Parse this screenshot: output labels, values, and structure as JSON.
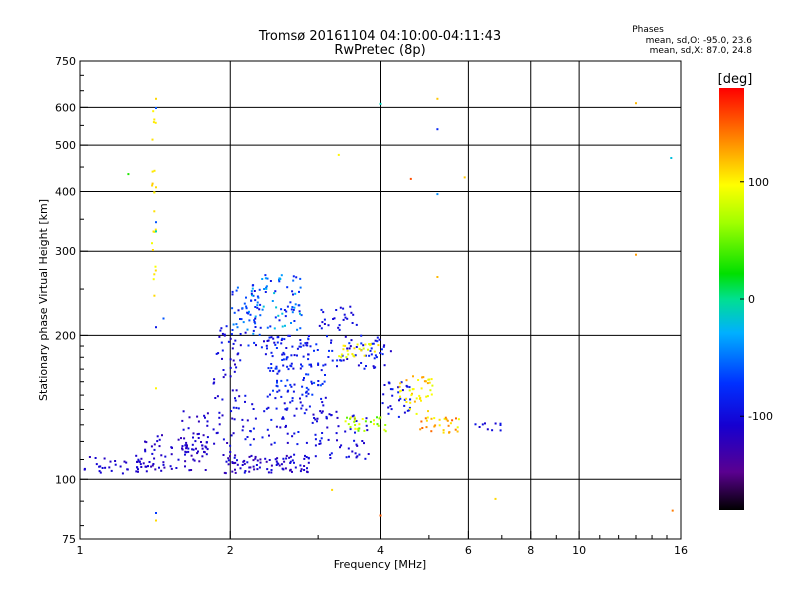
{
  "chart_data": {
    "type": "scatter",
    "title": "Tromsø 20161104 04:10:00-04:11:43",
    "subtitle": "RwPretec (8p)",
    "xlabel": "Frequency [MHz]",
    "ylabel": "Stationary phase Virtual Height [km]",
    "x_scale": "log",
    "y_scale": "log",
    "xlim": [
      1,
      16
    ],
    "ylim": [
      75,
      750
    ],
    "grid": true,
    "x_ticks": [
      {
        "value": 1,
        "label": "1"
      },
      {
        "value": 2,
        "label": "2"
      },
      {
        "value": 4,
        "label": "4"
      },
      {
        "value": 6,
        "label": "6"
      },
      {
        "value": 8,
        "label": "8"
      },
      {
        "value": 10,
        "label": "10"
      },
      {
        "value": 16,
        "label": "16"
      }
    ],
    "x_minor_ticks": [
      3,
      5,
      7,
      9,
      11,
      12,
      13,
      14,
      15
    ],
    "y_ticks": [
      {
        "value": 75,
        "label": "75"
      },
      {
        "value": 100,
        "label": "100"
      },
      {
        "value": 200,
        "label": "200"
      },
      {
        "value": 300,
        "label": "300"
      },
      {
        "value": 400,
        "label": "400"
      },
      {
        "value": 500,
        "label": "500"
      },
      {
        "value": 600,
        "label": "600"
      },
      {
        "value": 750,
        "label": "750"
      }
    ],
    "y_minor_ticks": [
      80,
      90,
      110,
      120,
      130,
      140,
      150,
      160,
      170,
      180,
      190,
      250,
      350,
      450,
      550,
      650,
      700
    ],
    "phases_box": {
      "title": "Phases",
      "line1": "mean, sd,O: -95.0, 23.6",
      "line2": "mean, sd,X:  87.0, 24.8"
    },
    "colorbar": {
      "label": "[deg]",
      "range": [
        -180,
        180
      ],
      "ticks": [
        {
          "value": 100,
          "label": "100"
        },
        {
          "value": 0,
          "label": "0"
        },
        {
          "value": -100,
          "label": "-100"
        }
      ]
    },
    "clusters": [
      {
        "x": [
          1.02,
          1.38
        ],
        "y": [
          102,
          112
        ],
        "phase": [
          -120,
          -100
        ],
        "n": 40
      },
      {
        "x": [
          1.3,
          1.8
        ],
        "y": [
          104,
          124
        ],
        "phase": [
          -130,
          -100
        ],
        "n": 70
      },
      {
        "x": [
          1.6,
          2.05
        ],
        "y": [
          112,
          140
        ],
        "phase": [
          -125,
          -95
        ],
        "n": 50
      },
      {
        "x": [
          1.85,
          2.1
        ],
        "y": [
          140,
          210
        ],
        "phase": [
          -120,
          -85
        ],
        "n": 45
      },
      {
        "x": [
          1.95,
          2.95
        ],
        "y": [
          103,
          113
        ],
        "phase": [
          -130,
          -95
        ],
        "n": 90
      },
      {
        "x": [
          2.0,
          2.3
        ],
        "y": [
          190,
          252
        ],
        "phase": [
          -110,
          -35
        ],
        "n": 45
      },
      {
        "x": [
          2.2,
          2.8
        ],
        "y": [
          205,
          270
        ],
        "phase": [
          -95,
          -15
        ],
        "n": 80
      },
      {
        "x": [
          2.3,
          3.0
        ],
        "y": [
          170,
          200
        ],
        "phase": [
          -110,
          -70
        ],
        "n": 70
      },
      {
        "x": [
          2.4,
          3.1
        ],
        "y": [
          150,
          175
        ],
        "phase": [
          -100,
          -60
        ],
        "n": 55
      },
      {
        "x": [
          2.1,
          3.2
        ],
        "y": [
          118,
          150
        ],
        "phase": [
          -115,
          -80
        ],
        "n": 80
      },
      {
        "x": [
          3.0,
          3.6
        ],
        "y": [
          205,
          230
        ],
        "phase": [
          -110,
          -85
        ],
        "n": 25
      },
      {
        "x": [
          3.1,
          4.2
        ],
        "y": [
          170,
          200
        ],
        "phase": [
          -115,
          -70
        ],
        "n": 55
      },
      {
        "x": [
          3.3,
          4.0
        ],
        "y": [
          180,
          192
        ],
        "phase": [
          80,
          110
        ],
        "n": 25
      },
      {
        "x": [
          2.9,
          3.8
        ],
        "y": [
          110,
          140
        ],
        "phase": [
          -120,
          -90
        ],
        "n": 45
      },
      {
        "x": [
          3.4,
          4.1
        ],
        "y": [
          125,
          135
        ],
        "phase": [
          40,
          100
        ],
        "n": 30
      },
      {
        "x": [
          4.0,
          4.6
        ],
        "y": [
          135,
          160
        ],
        "phase": [
          -110,
          -80
        ],
        "n": 30
      },
      {
        "x": [
          4.3,
          5.1
        ],
        "y": [
          135,
          165
        ],
        "phase": [
          85,
          130
        ],
        "n": 40
      },
      {
        "x": [
          4.8,
          5.8
        ],
        "y": [
          125,
          135
        ],
        "phase": [
          90,
          150
        ],
        "n": 30
      },
      {
        "x": [
          6.1,
          7.0
        ],
        "y": [
          126,
          131
        ],
        "phase": [
          -110,
          -85
        ],
        "n": 10
      },
      {
        "x": [
          1.39,
          1.42
        ],
        "y": [
          235,
          450
        ],
        "phase": [
          90,
          115
        ],
        "n": 18
      },
      {
        "x": [
          1.39,
          1.42
        ],
        "y": [
          500,
          600
        ],
        "phase": [
          95,
          110
        ],
        "n": 5
      }
    ],
    "isolated_points": [
      {
        "x": 1.25,
        "y": 435,
        "phase": 30
      },
      {
        "x": 1.42,
        "y": 330,
        "phase": -10
      },
      {
        "x": 1.42,
        "y": 345,
        "phase": -60
      },
      {
        "x": 1.42,
        "y": 208,
        "phase": -90
      },
      {
        "x": 1.47,
        "y": 217,
        "phase": -60
      },
      {
        "x": 1.42,
        "y": 598,
        "phase": -60
      },
      {
        "x": 1.42,
        "y": 155,
        "phase": 100
      },
      {
        "x": 1.42,
        "y": 85,
        "phase": -70
      },
      {
        "x": 1.42,
        "y": 82,
        "phase": 110
      },
      {
        "x": 1.42,
        "y": 625,
        "phase": 110
      },
      {
        "x": 3.3,
        "y": 477,
        "phase": 100
      },
      {
        "x": 3.2,
        "y": 95,
        "phase": 110
      },
      {
        "x": 4.0,
        "y": 610,
        "phase": -10
      },
      {
        "x": 4.0,
        "y": 84,
        "phase": 150
      },
      {
        "x": 4.6,
        "y": 425,
        "phase": 155
      },
      {
        "x": 5.2,
        "y": 625,
        "phase": 115
      },
      {
        "x": 5.2,
        "y": 540,
        "phase": -80
      },
      {
        "x": 5.2,
        "y": 395,
        "phase": -40
      },
      {
        "x": 5.2,
        "y": 265,
        "phase": 120
      },
      {
        "x": 5.9,
        "y": 428,
        "phase": 115
      },
      {
        "x": 6.8,
        "y": 91,
        "phase": 110
      },
      {
        "x": 13.0,
        "y": 612,
        "phase": 120
      },
      {
        "x": 13.0,
        "y": 295,
        "phase": 130
      },
      {
        "x": 15.3,
        "y": 470,
        "phase": -20
      },
      {
        "x": 15.4,
        "y": 86,
        "phase": 140
      }
    ]
  }
}
